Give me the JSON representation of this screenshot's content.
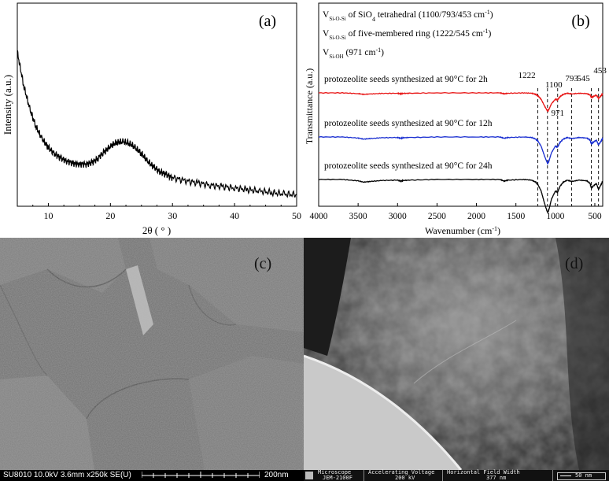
{
  "figure": {
    "panel_a_label": "(a)",
    "panel_b_label": "(b)",
    "panel_c_label": "(c)",
    "panel_d_label": "(d)"
  },
  "chart_data": [
    {
      "type": "line",
      "title": "",
      "xlabel": "2θ ( ° )",
      "ylabel": "Intensity (a.u.)",
      "xlim": [
        5,
        50
      ],
      "xticks": [
        "10",
        "20",
        "30",
        "40",
        "50"
      ],
      "y_ticks_shown": false,
      "series": [
        {
          "color": "#000000",
          "x": [
            5,
            6,
            7,
            8,
            9,
            10,
            11,
            12,
            13,
            14,
            15,
            16,
            17,
            18,
            19,
            20,
            21,
            22,
            23,
            24,
            25,
            26,
            27,
            28,
            29,
            30,
            32,
            34,
            36,
            38,
            40,
            42,
            44,
            46,
            48,
            50
          ],
          "y": [
            1.0,
            0.78,
            0.62,
            0.5,
            0.42,
            0.36,
            0.32,
            0.29,
            0.27,
            0.255,
            0.25,
            0.25,
            0.26,
            0.29,
            0.33,
            0.37,
            0.395,
            0.4,
            0.39,
            0.36,
            0.32,
            0.27,
            0.23,
            0.2,
            0.18,
            0.16,
            0.14,
            0.125,
            0.11,
            0.1,
            0.09,
            0.08,
            0.07,
            0.06,
            0.05,
            0.045
          ]
        }
      ]
    },
    {
      "type": "line",
      "title": "",
      "xlabel": "Wavenumber (cm⁻¹)",
      "ylabel": "Transmittance (a.u.)",
      "xlim": [
        4000,
        400
      ],
      "xticks": [
        "4000",
        "3500",
        "3000",
        "2500",
        "2000",
        "1500",
        "1000",
        "500"
      ],
      "y_ticks_shown": false,
      "legend_text": [
        {
          "main": "V",
          "sub": "Si-O-Si",
          "rest": " of SiO",
          "sub2": "4",
          "tail": " tetrahedral   (1100/793/453 cm",
          "sup": "-1",
          "end": ")"
        },
        {
          "main": "V",
          "sub": "Si-O-Si",
          "rest": " of five-membered ring   (1222/545 cm",
          "sup": "-1",
          "end": ")"
        },
        {
          "main": "V",
          "sub": "Si-OH",
          "rest": "   (971 cm",
          "sup": "-1",
          "end": ")"
        }
      ],
      "reference_lines": [
        "1222",
        "1100",
        "971",
        "793",
        "545",
        "453"
      ],
      "series": [
        {
          "name": "protozeolite seeds synthesized at 90°C for 2h",
          "color": "#e81818",
          "offset": 0,
          "depth": 0.55
        },
        {
          "name": "protozeolite seeds synthesized at 90°C for 12h",
          "color": "#1a2fd1",
          "offset": 1,
          "depth": 0.8
        },
        {
          "name": "protozeolite seeds synthesized at 90°C for 24h",
          "color": "#000000",
          "offset": 2,
          "depth": 1.0
        }
      ],
      "x": [
        4000,
        3700,
        3500,
        3430,
        3350,
        3200,
        3000,
        2960,
        2930,
        2850,
        2500,
        2000,
        1700,
        1650,
        1600,
        1400,
        1300,
        1250,
        1222,
        1180,
        1140,
        1100,
        1080,
        1050,
        1000,
        971,
        940,
        900,
        850,
        793,
        700,
        600,
        560,
        545,
        520,
        480,
        453,
        420,
        400
      ],
      "y": [
        0,
        0,
        0.04,
        0.08,
        0.06,
        0.03,
        0.02,
        0.05,
        0.03,
        0.02,
        0.0,
        0.0,
        0.0,
        0.05,
        0.02,
        0.0,
        0.02,
        0.08,
        0.15,
        0.35,
        0.7,
        1.0,
        0.9,
        0.6,
        0.35,
        0.38,
        0.2,
        0.08,
        0.02,
        0.06,
        0.02,
        0.04,
        0.12,
        0.25,
        0.2,
        0.12,
        0.3,
        0.15,
        0.05
      ]
    }
  ],
  "micrographs": {
    "sem": {
      "status_bar": "SU8010 10.0kV 3.6mm x250k SE(U)",
      "scale_label": "200nm"
    },
    "tem": {
      "fields": [
        {
          "label": "Microscope",
          "value": "JEM-2100F"
        },
        {
          "label": "Accelerating Voltage",
          "value": "200 kV"
        },
        {
          "label": "Horizontal Field Width",
          "value": "377 nm"
        }
      ],
      "scale_label": "50 nm"
    }
  },
  "colors": {
    "red_series": "#e81818",
    "blue_series": "#1a2fd1",
    "black_series": "#000000"
  }
}
